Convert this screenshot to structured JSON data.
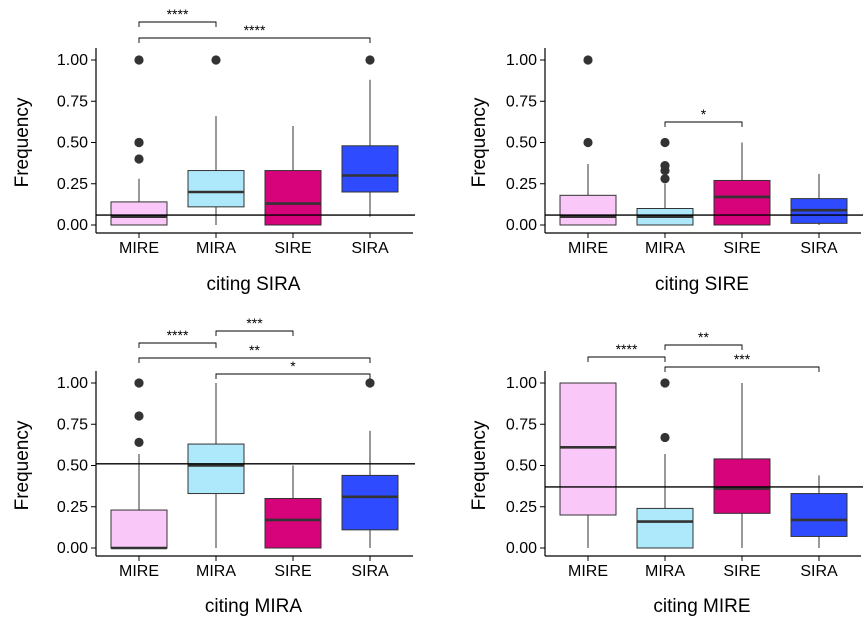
{
  "colors": {
    "MIRE": "#F9C8F9",
    "MIRA": "#AEE8FB",
    "SIRE": "#D6037B",
    "SIRA": "#2E4BFF",
    "median_line": "#333333",
    "reference_line": "#000000"
  },
  "chart_data": [
    {
      "type": "boxplot",
      "xlabel": "citing SIRA",
      "ylabel": "Frequency",
      "ylim": [
        0,
        1
      ],
      "yticks": [
        "0.00",
        "0.25",
        "0.50",
        "0.75",
        "1.00"
      ],
      "categories": [
        "MIRE",
        "MIRA",
        "SIRE",
        "SIRA"
      ],
      "reference_line": 0.06,
      "boxes": [
        {
          "category": "MIRE",
          "low": 0,
          "q1": 0,
          "median": 0.05,
          "q3": 0.14,
          "high": 0.28,
          "outliers": [
            0.4,
            0.5,
            0.5,
            1.0
          ]
        },
        {
          "category": "MIRA",
          "low": 0,
          "q1": 0.11,
          "median": 0.2,
          "q3": 0.33,
          "high": 0.66,
          "outliers": [
            1.0
          ]
        },
        {
          "category": "SIRE",
          "low": 0,
          "q1": 0,
          "median": 0.13,
          "q3": 0.33,
          "high": 0.6,
          "outliers": []
        },
        {
          "category": "SIRA",
          "low": 0.05,
          "q1": 0.2,
          "median": 0.3,
          "q3": 0.48,
          "high": 0.88,
          "outliers": [
            1.0
          ]
        }
      ],
      "annotations": [
        {
          "from": "MIRE",
          "to": "MIRA",
          "label": "****"
        },
        {
          "from": "MIRE",
          "to": "SIRA",
          "label": "****"
        }
      ]
    },
    {
      "type": "boxplot",
      "xlabel": "citing SIRE",
      "ylabel": "Frequency",
      "ylim": [
        0,
        1
      ],
      "yticks": [
        "0.00",
        "0.25",
        "0.50",
        "0.75",
        "1.00"
      ],
      "categories": [
        "MIRE",
        "MIRA",
        "SIRE",
        "SIRA"
      ],
      "reference_line": 0.06,
      "boxes": [
        {
          "category": "MIRE",
          "low": 0,
          "q1": 0,
          "median": 0.05,
          "q3": 0.18,
          "high": 0.37,
          "outliers": [
            0.5,
            1.0
          ]
        },
        {
          "category": "MIRA",
          "low": 0,
          "q1": 0,
          "median": 0.05,
          "q3": 0.1,
          "high": 0.25,
          "outliers": [
            0.28,
            0.33,
            0.36,
            0.5
          ]
        },
        {
          "category": "SIRE",
          "low": 0,
          "q1": 0,
          "median": 0.17,
          "q3": 0.27,
          "high": 0.5,
          "outliers": []
        },
        {
          "category": "SIRA",
          "low": 0,
          "q1": 0.01,
          "median": 0.09,
          "q3": 0.16,
          "high": 0.31,
          "outliers": []
        }
      ],
      "annotations": [
        {
          "from": "MIRA",
          "to": "SIRE",
          "label": "*"
        }
      ]
    },
    {
      "type": "boxplot",
      "xlabel": "citing MIRA",
      "ylabel": "Frequency",
      "ylim": [
        0,
        1
      ],
      "yticks": [
        "0.00",
        "0.25",
        "0.50",
        "0.75",
        "1.00"
      ],
      "categories": [
        "MIRE",
        "MIRA",
        "SIRE",
        "SIRA"
      ],
      "reference_line": 0.51,
      "boxes": [
        {
          "category": "MIRE",
          "low": 0,
          "q1": 0,
          "median": 0,
          "q3": 0.23,
          "high": 0.57,
          "outliers": [
            0.64,
            0.8,
            1.0
          ]
        },
        {
          "category": "MIRA",
          "low": 0,
          "q1": 0.33,
          "median": 0.5,
          "q3": 0.63,
          "high": 1.0,
          "outliers": []
        },
        {
          "category": "SIRE",
          "low": 0,
          "q1": 0,
          "median": 0.17,
          "q3": 0.3,
          "high": 0.5,
          "outliers": []
        },
        {
          "category": "SIRA",
          "low": 0,
          "q1": 0.11,
          "median": 0.31,
          "q3": 0.44,
          "high": 0.71,
          "outliers": [
            1.0
          ]
        }
      ],
      "annotations": [
        {
          "from": "MIRE",
          "to": "MIRA",
          "label": "****"
        },
        {
          "from": "MIRA",
          "to": "SIRE",
          "label": "***"
        },
        {
          "from": "MIRE",
          "to": "SIRA",
          "label": "**"
        },
        {
          "from": "MIRA",
          "to": "SIRA",
          "label": "*"
        }
      ]
    },
    {
      "type": "boxplot",
      "xlabel": "citing MIRE",
      "ylabel": "Frequency",
      "ylim": [
        0,
        1
      ],
      "yticks": [
        "0.00",
        "0.25",
        "0.50",
        "0.75",
        "1.00"
      ],
      "categories": [
        "MIRE",
        "MIRA",
        "SIRE",
        "SIRA"
      ],
      "reference_line": 0.37,
      "boxes": [
        {
          "category": "MIRE",
          "low": 0,
          "q1": 0.2,
          "median": 0.61,
          "q3": 1.0,
          "high": 1.0,
          "outliers": []
        },
        {
          "category": "MIRA",
          "low": 0,
          "q1": 0,
          "median": 0.16,
          "q3": 0.24,
          "high": 0.57,
          "outliers": [
            0.67,
            1.0
          ]
        },
        {
          "category": "SIRE",
          "low": 0,
          "q1": 0.21,
          "median": 0.36,
          "q3": 0.54,
          "high": 1.0,
          "outliers": []
        },
        {
          "category": "SIRA",
          "low": 0,
          "q1": 0.07,
          "median": 0.17,
          "q3": 0.33,
          "high": 0.44,
          "outliers": []
        }
      ],
      "annotations": [
        {
          "from": "MIRE",
          "to": "MIRA",
          "label": "****"
        },
        {
          "from": "MIRA",
          "to": "SIRE",
          "label": "**"
        },
        {
          "from": "MIRA",
          "to": "SIRA",
          "label": "***"
        }
      ]
    }
  ]
}
